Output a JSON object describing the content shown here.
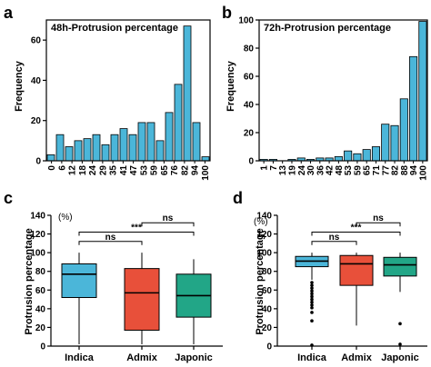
{
  "figure": {
    "colors": {
      "bar": "#4bb6d9",
      "indica": "#4bb6d9",
      "admix": "#e8503a",
      "japonic": "#22a687",
      "axis": "#000000"
    }
  },
  "chart_data": [
    {
      "panel": "a",
      "type": "bar",
      "title": "48h-Protrusion percentage",
      "ylabel": "Frequency",
      "xlabel": "",
      "ylim": [
        0,
        70
      ],
      "yticks": [
        0,
        20,
        40,
        60
      ],
      "categories": [
        "0",
        "6",
        "12",
        "18",
        "24",
        "29",
        "35",
        "41",
        "47",
        "53",
        "59",
        "65",
        "71",
        "76",
        "82",
        "88",
        "94",
        "100"
      ],
      "xticklabels": [
        "0",
        "6",
        "12",
        "18",
        "24",
        "29",
        "35",
        "41",
        "47",
        "53",
        "59",
        "65",
        "76",
        "82",
        "94",
        "100"
      ],
      "values": [
        3,
        13,
        7,
        10,
        11,
        13,
        8,
        13,
        16,
        13,
        19,
        19,
        10,
        24,
        38,
        67,
        19,
        2
      ]
    },
    {
      "panel": "b",
      "type": "bar",
      "title": "72h-Protrusion percentage",
      "ylabel": "Frequency",
      "xlabel": "",
      "ylim": [
        0,
        100
      ],
      "yticks": [
        0,
        20,
        40,
        60,
        80,
        100
      ],
      "categories": [
        "1",
        "7",
        "13",
        "19",
        "24",
        "30",
        "36",
        "42",
        "48",
        "53",
        "59",
        "65",
        "71",
        "77",
        "82",
        "88",
        "94",
        "100"
      ],
      "xticklabels": [
        "1",
        "7",
        "13",
        "19",
        "24",
        "30",
        "36",
        "42",
        "48",
        "53",
        "59",
        "65",
        "71",
        "77",
        "82",
        "88",
        "94",
        "100"
      ],
      "values": [
        1,
        1,
        0,
        1,
        2,
        1,
        2,
        2,
        3,
        7,
        5,
        8,
        10,
        26,
        25,
        44,
        74,
        99
      ]
    },
    {
      "panel": "c",
      "type": "box",
      "ylabel": "Protrusion percentage",
      "yunit": "(%)",
      "ylim": [
        0,
        140
      ],
      "yticks": [
        0,
        20,
        40,
        60,
        80,
        100,
        120,
        140
      ],
      "groups": [
        {
          "name": "Indica",
          "whisker_low": 2,
          "q1": 52,
          "median": 77,
          "q3": 88,
          "whisker_high": 100,
          "outliers": []
        },
        {
          "name": "Admix",
          "whisker_low": 2,
          "q1": 17,
          "median": 57,
          "q3": 83,
          "whisker_high": 100,
          "outliers": []
        },
        {
          "name": "Japonic",
          "whisker_low": 2,
          "q1": 31,
          "median": 54,
          "q3": 77,
          "whisker_high": 93,
          "outliers": []
        }
      ],
      "comparisons": [
        {
          "from": "Indica",
          "to": "Admix",
          "label": "ns",
          "y": 112
        },
        {
          "from": "Indica",
          "to": "Japonic",
          "label": "***",
          "y": 122
        },
        {
          "from": "Admix",
          "to": "Japonic",
          "label": "ns",
          "y": 132
        }
      ]
    },
    {
      "panel": "d",
      "type": "box",
      "ylabel": "Protrusion percentage",
      "yunit": "(%)",
      "ylim": [
        0,
        140
      ],
      "yticks": [
        0,
        20,
        40,
        60,
        80,
        100,
        120,
        140
      ],
      "groups": [
        {
          "name": "Indica",
          "whisker_low": 71,
          "q1": 85,
          "median": 91,
          "q3": 96,
          "whisker_high": 100,
          "outliers": [
            1,
            27,
            36,
            41,
            44,
            47,
            50,
            53,
            56,
            59,
            62,
            65,
            68
          ]
        },
        {
          "name": "Admix",
          "whisker_low": 22,
          "q1": 65,
          "median": 88,
          "q3": 97,
          "whisker_high": 100,
          "outliers": []
        },
        {
          "name": "Japonic",
          "whisker_low": 58,
          "q1": 75,
          "median": 87,
          "q3": 95,
          "whisker_high": 100,
          "outliers": [
            2,
            24
          ]
        }
      ],
      "comparisons": [
        {
          "from": "Indica",
          "to": "Admix",
          "label": "ns",
          "y": 112
        },
        {
          "from": "Indica",
          "to": "Japonic",
          "label": "***",
          "y": 122
        },
        {
          "from": "Admix",
          "to": "Japonic",
          "label": "ns",
          "y": 132
        }
      ]
    }
  ]
}
